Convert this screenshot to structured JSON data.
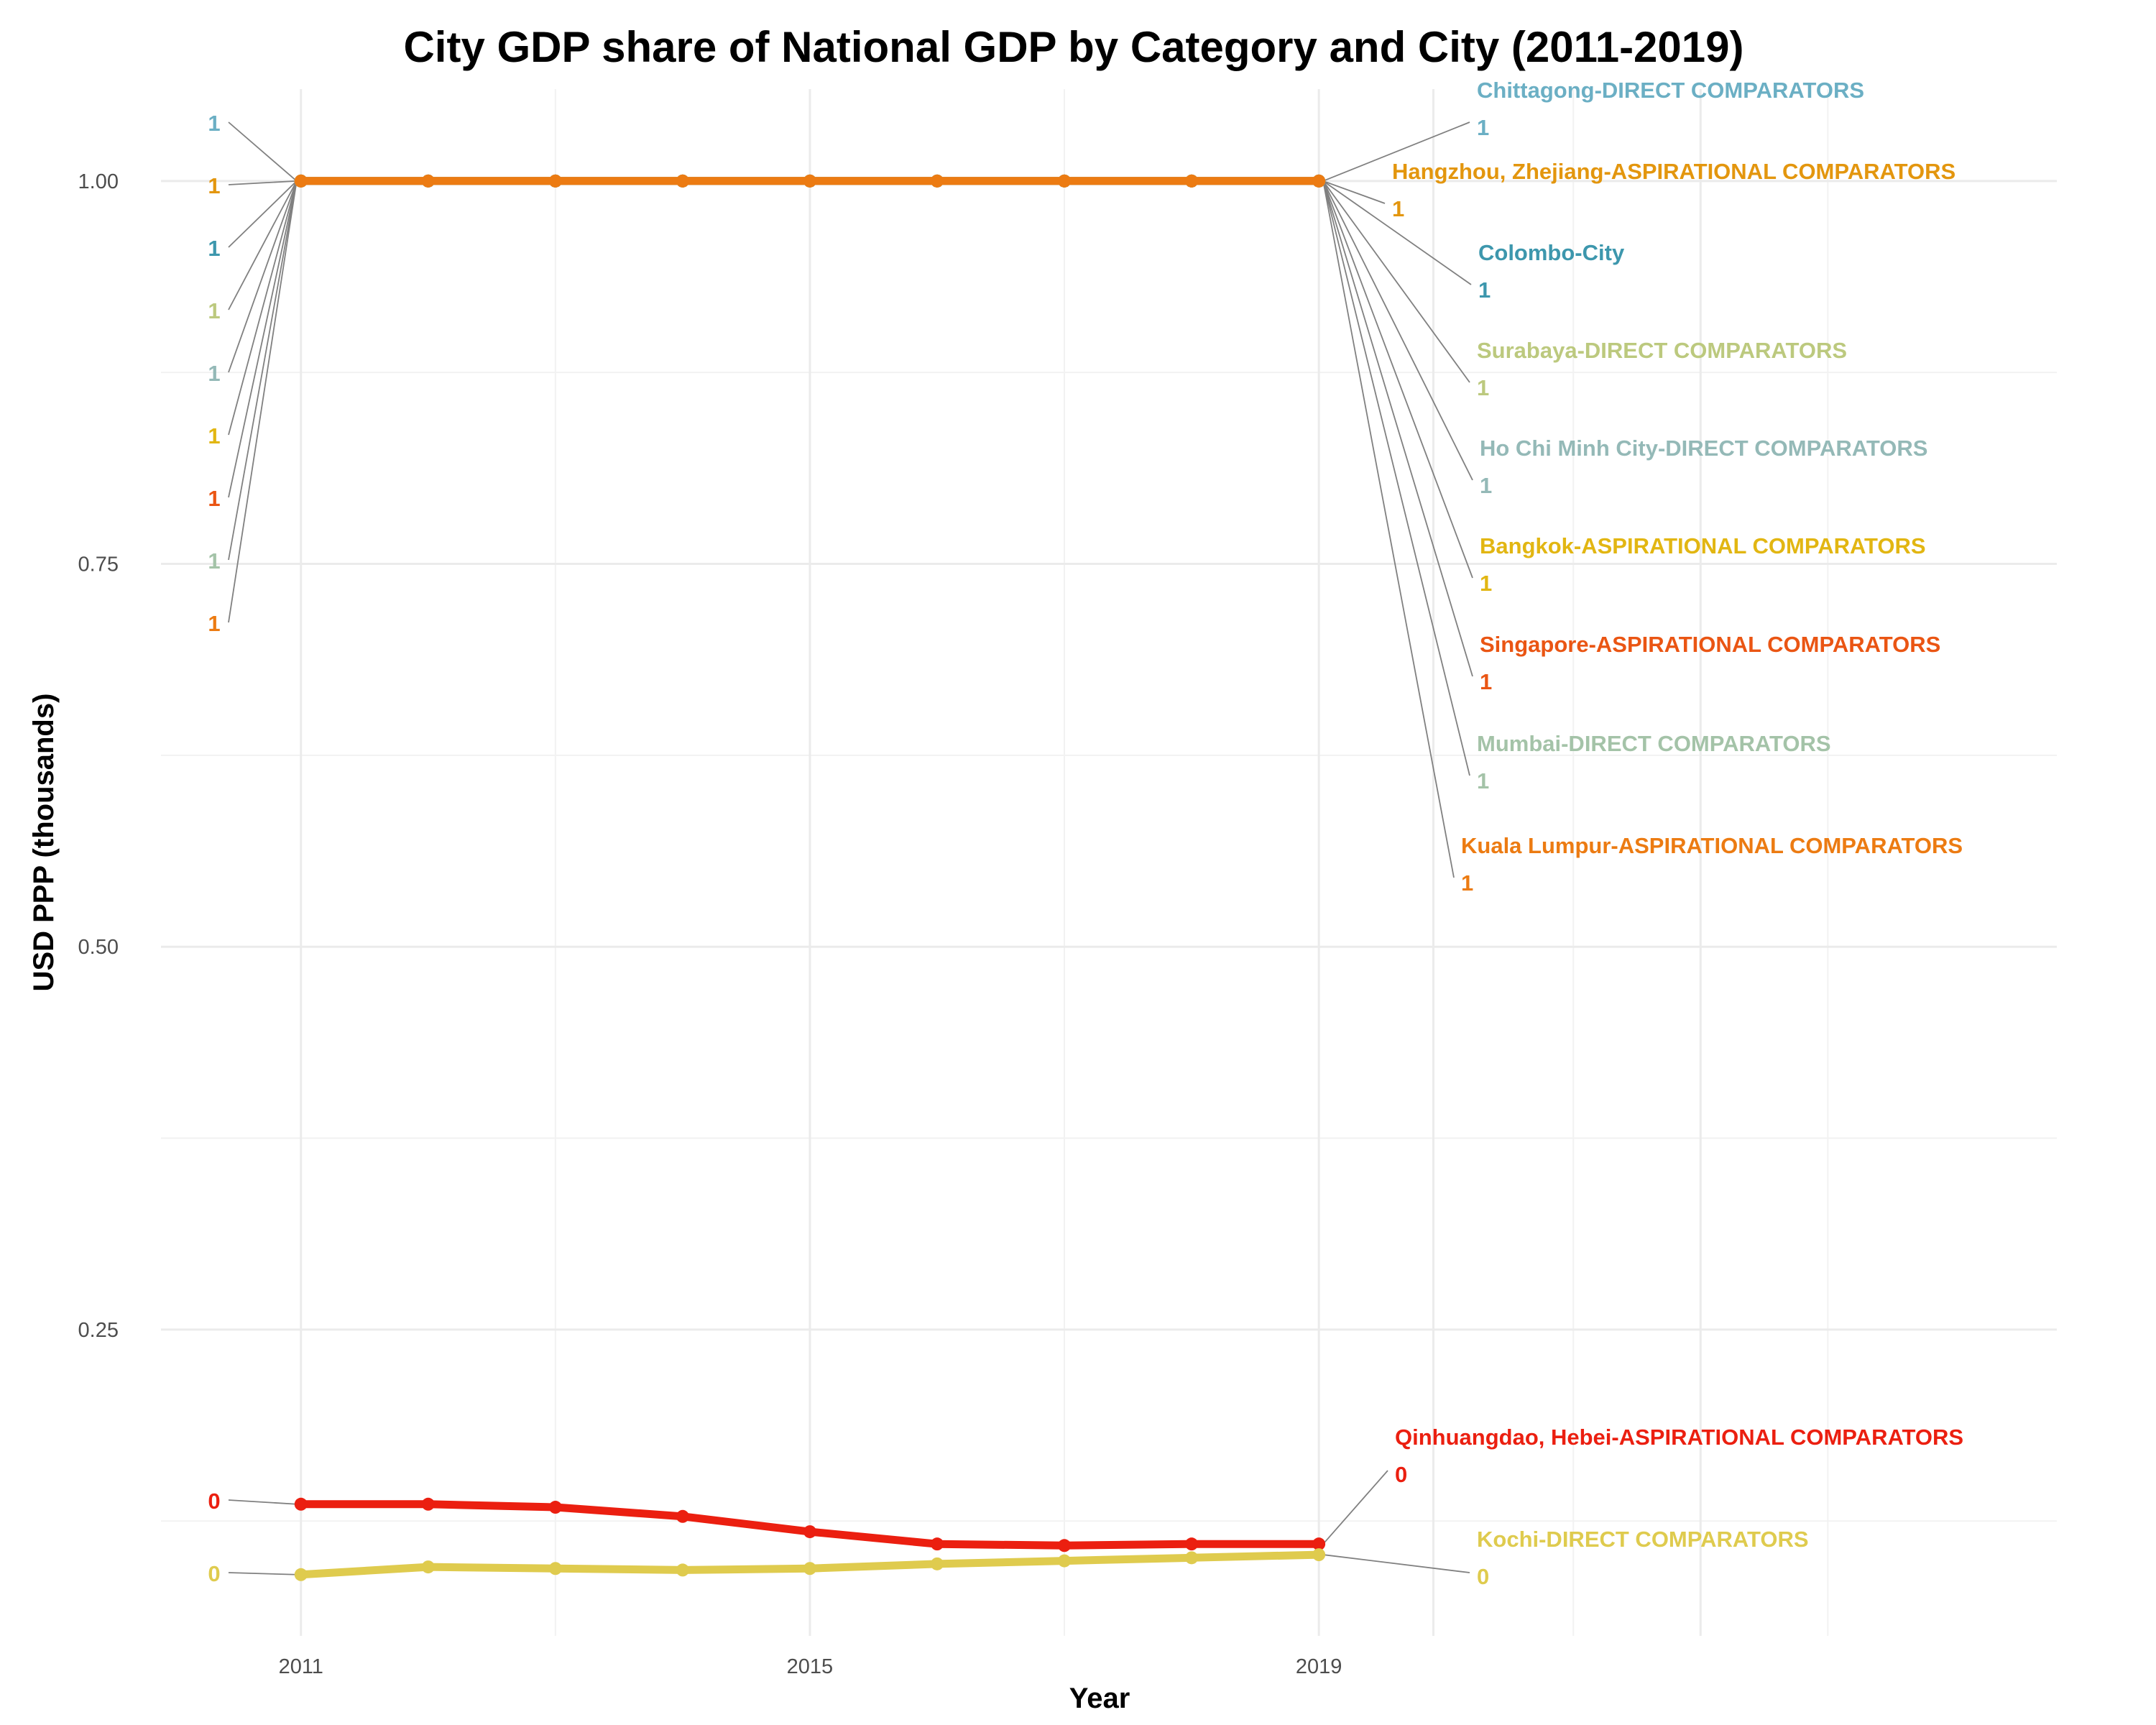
{
  "chart_data": {
    "type": "line",
    "title": "City GDP share of National GDP by Category and City (2011-2019)",
    "xlabel": "Year",
    "ylabel": "USD PPP (thousands)",
    "x_ticks": [
      "2011",
      "2015",
      "2019"
    ],
    "y_ticks": [
      "0.25",
      "0.50",
      "0.75",
      "1.00"
    ],
    "x": [
      2011,
      2012,
      2013,
      2014,
      2015,
      2016,
      2017,
      2018,
      2019
    ],
    "xlim": [
      2009.9,
      2024.8
    ],
    "ylim": [
      0.05,
      1.06
    ],
    "grid": true,
    "legend": "none (direct labels)",
    "series": [
      {
        "name": "Chittagong-DIRECT COMPARATORS",
        "label": "Chittagong-DIRECT COMPARATORS",
        "color": "#6bafc4",
        "left_value": "1",
        "right_value": "1",
        "values": [
          1,
          1,
          1,
          1,
          1,
          1,
          1,
          1,
          1
        ]
      },
      {
        "name": "Hangzhou, Zhejiang-ASPIRATIONAL COMPARATORS",
        "label": "Hangzhou, Zhejiang-ASPIRATIONAL COMPARATORS",
        "color": "#e3960e",
        "left_value": "1",
        "right_value": "1",
        "values": [
          1,
          1,
          1,
          1,
          1,
          1,
          1,
          1,
          1
        ]
      },
      {
        "name": "Colombo-City",
        "label": "Colombo-City",
        "color": "#3d97ad",
        "left_value": "1",
        "right_value": "1",
        "values": [
          1,
          1,
          1,
          1,
          1,
          1,
          1,
          1,
          1
        ]
      },
      {
        "name": "Surabaya-DIRECT COMPARATORS",
        "label": "Surabaya-DIRECT COMPARATORS",
        "color": "#bcc97e",
        "left_value": "1",
        "right_value": "1",
        "values": [
          1,
          1,
          1,
          1,
          1,
          1,
          1,
          1,
          1
        ]
      },
      {
        "name": "Ho Chi Minh City-DIRECT COMPARATORS",
        "label": "Ho Chi Minh City-DIRECT COMPARATORS",
        "color": "#94b9b7",
        "left_value": "1",
        "right_value": "1",
        "values": [
          1,
          1,
          1,
          1,
          1,
          1,
          1,
          1,
          1
        ]
      },
      {
        "name": "Bangkok-ASPIRATIONAL COMPARATORS",
        "label": "Bangkok-ASPIRATIONAL COMPARATORS",
        "color": "#e2b612",
        "left_value": "1",
        "right_value": "1",
        "values": [
          1,
          1,
          1,
          1,
          1,
          1,
          1,
          1,
          1
        ]
      },
      {
        "name": "Singapore-ASPIRATIONAL COMPARATORS",
        "label": "Singapore-ASPIRATIONAL COMPARATORS",
        "color": "#ea5513",
        "left_value": "1",
        "right_value": "1",
        "values": [
          1,
          1,
          1,
          1,
          1,
          1,
          1,
          1,
          1
        ]
      },
      {
        "name": "Mumbai-DIRECT COMPARATORS",
        "label": "Mumbai-DIRECT COMPARATORS",
        "color": "#a4c3a8",
        "left_value": "1",
        "right_value": "1",
        "values": [
          1,
          1,
          1,
          1,
          1,
          1,
          1,
          1,
          1
        ]
      },
      {
        "name": "Kuala Lumpur-ASPIRATIONAL COMPARATORS",
        "label": "Kuala Lumpur-ASPIRATIONAL COMPARATORS",
        "color": "#ec7b12",
        "left_value": "1",
        "right_value": "1",
        "values": [
          1,
          1,
          1,
          1,
          1,
          1,
          1,
          1,
          1
        ]
      },
      {
        "name": "Qinhuangdao, Hebei-ASPIRATIONAL COMPARATORS",
        "label": "Qinhuangdao, Hebei-ASPIRATIONAL COMPARATORS",
        "color": "#eb1f10",
        "left_value": "0",
        "right_value": "0",
        "values": [
          0.136,
          0.136,
          0.134,
          0.128,
          0.118,
          0.11,
          0.109,
          0.11,
          0.11
        ]
      },
      {
        "name": "Kochi-DIRECT COMPARATORS",
        "label": "Kochi-DIRECT COMPARATORS",
        "color": "#dfcb4e",
        "left_value": "0",
        "right_value": "0",
        "values": [
          0.09,
          0.095,
          0.094,
          0.093,
          0.094,
          0.097,
          0.099,
          0.101,
          0.103
        ]
      }
    ]
  }
}
